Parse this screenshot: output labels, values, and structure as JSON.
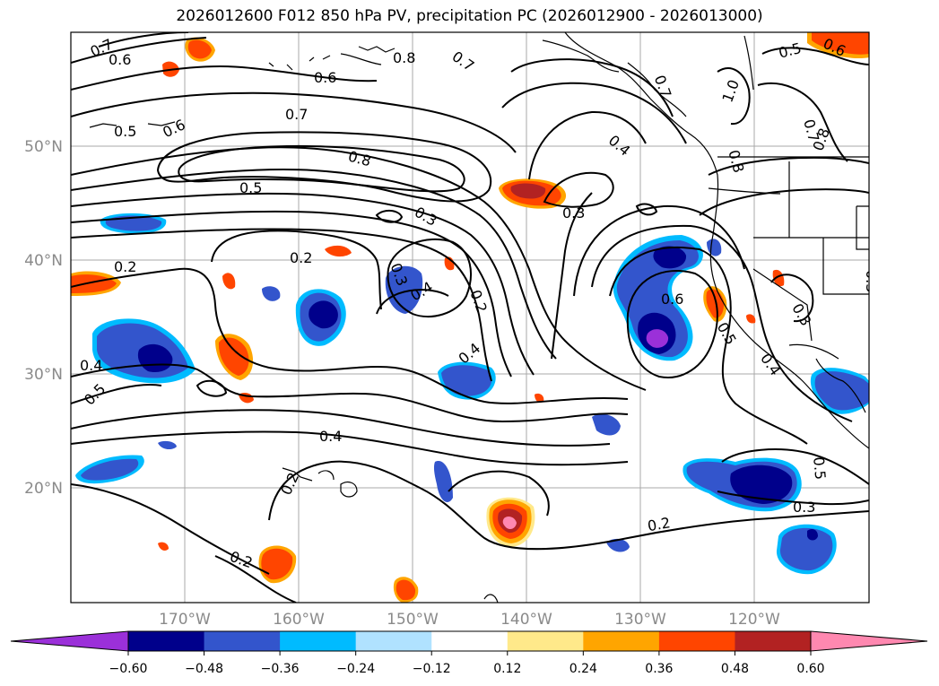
{
  "title": "2026012600 F012 850 hPa PV, precipitation PC (2026012900 - 2026013000)",
  "map": {
    "lon_labels": [
      "170°W",
      "160°W",
      "150°W",
      "140°W",
      "130°W",
      "120°W"
    ],
    "lat_labels": [
      "50°N",
      "40°N",
      "30°N",
      "20°N"
    ]
  },
  "contour_labels": [
    "0.7",
    "0.6",
    "0.5",
    "0.6",
    "0.6",
    "0.7",
    "0.8",
    "0.5",
    "0.3",
    "0.2",
    "0.2",
    "0.3",
    "0.4",
    "0.2",
    "0.4",
    "0.4",
    "0.5",
    "0.4",
    "0.2",
    "0.2",
    "0.2",
    "0.3",
    "0.6",
    "0.5",
    "0.4",
    "0.3",
    "0.3",
    "0.3",
    "0.5",
    "0.8",
    "0.7",
    "0.7",
    "1.0",
    "0.8",
    "0.8",
    "0.6",
    "0.5",
    "0.7",
    "0.4"
  ],
  "colorbar": {
    "colors": [
      "#9b30d9",
      "#00008b",
      "#3355cc",
      "#00bbff",
      "#b0e2ff",
      "#ffffff",
      "#ffe98a",
      "#ffa500",
      "#ff4500",
      "#b22222",
      "#ff88b0"
    ],
    "ticks": [
      "−0.60",
      "−0.48",
      "−0.36",
      "−0.24",
      "−0.12",
      "0.12",
      "0.24",
      "0.36",
      "0.48",
      "0.60"
    ]
  }
}
